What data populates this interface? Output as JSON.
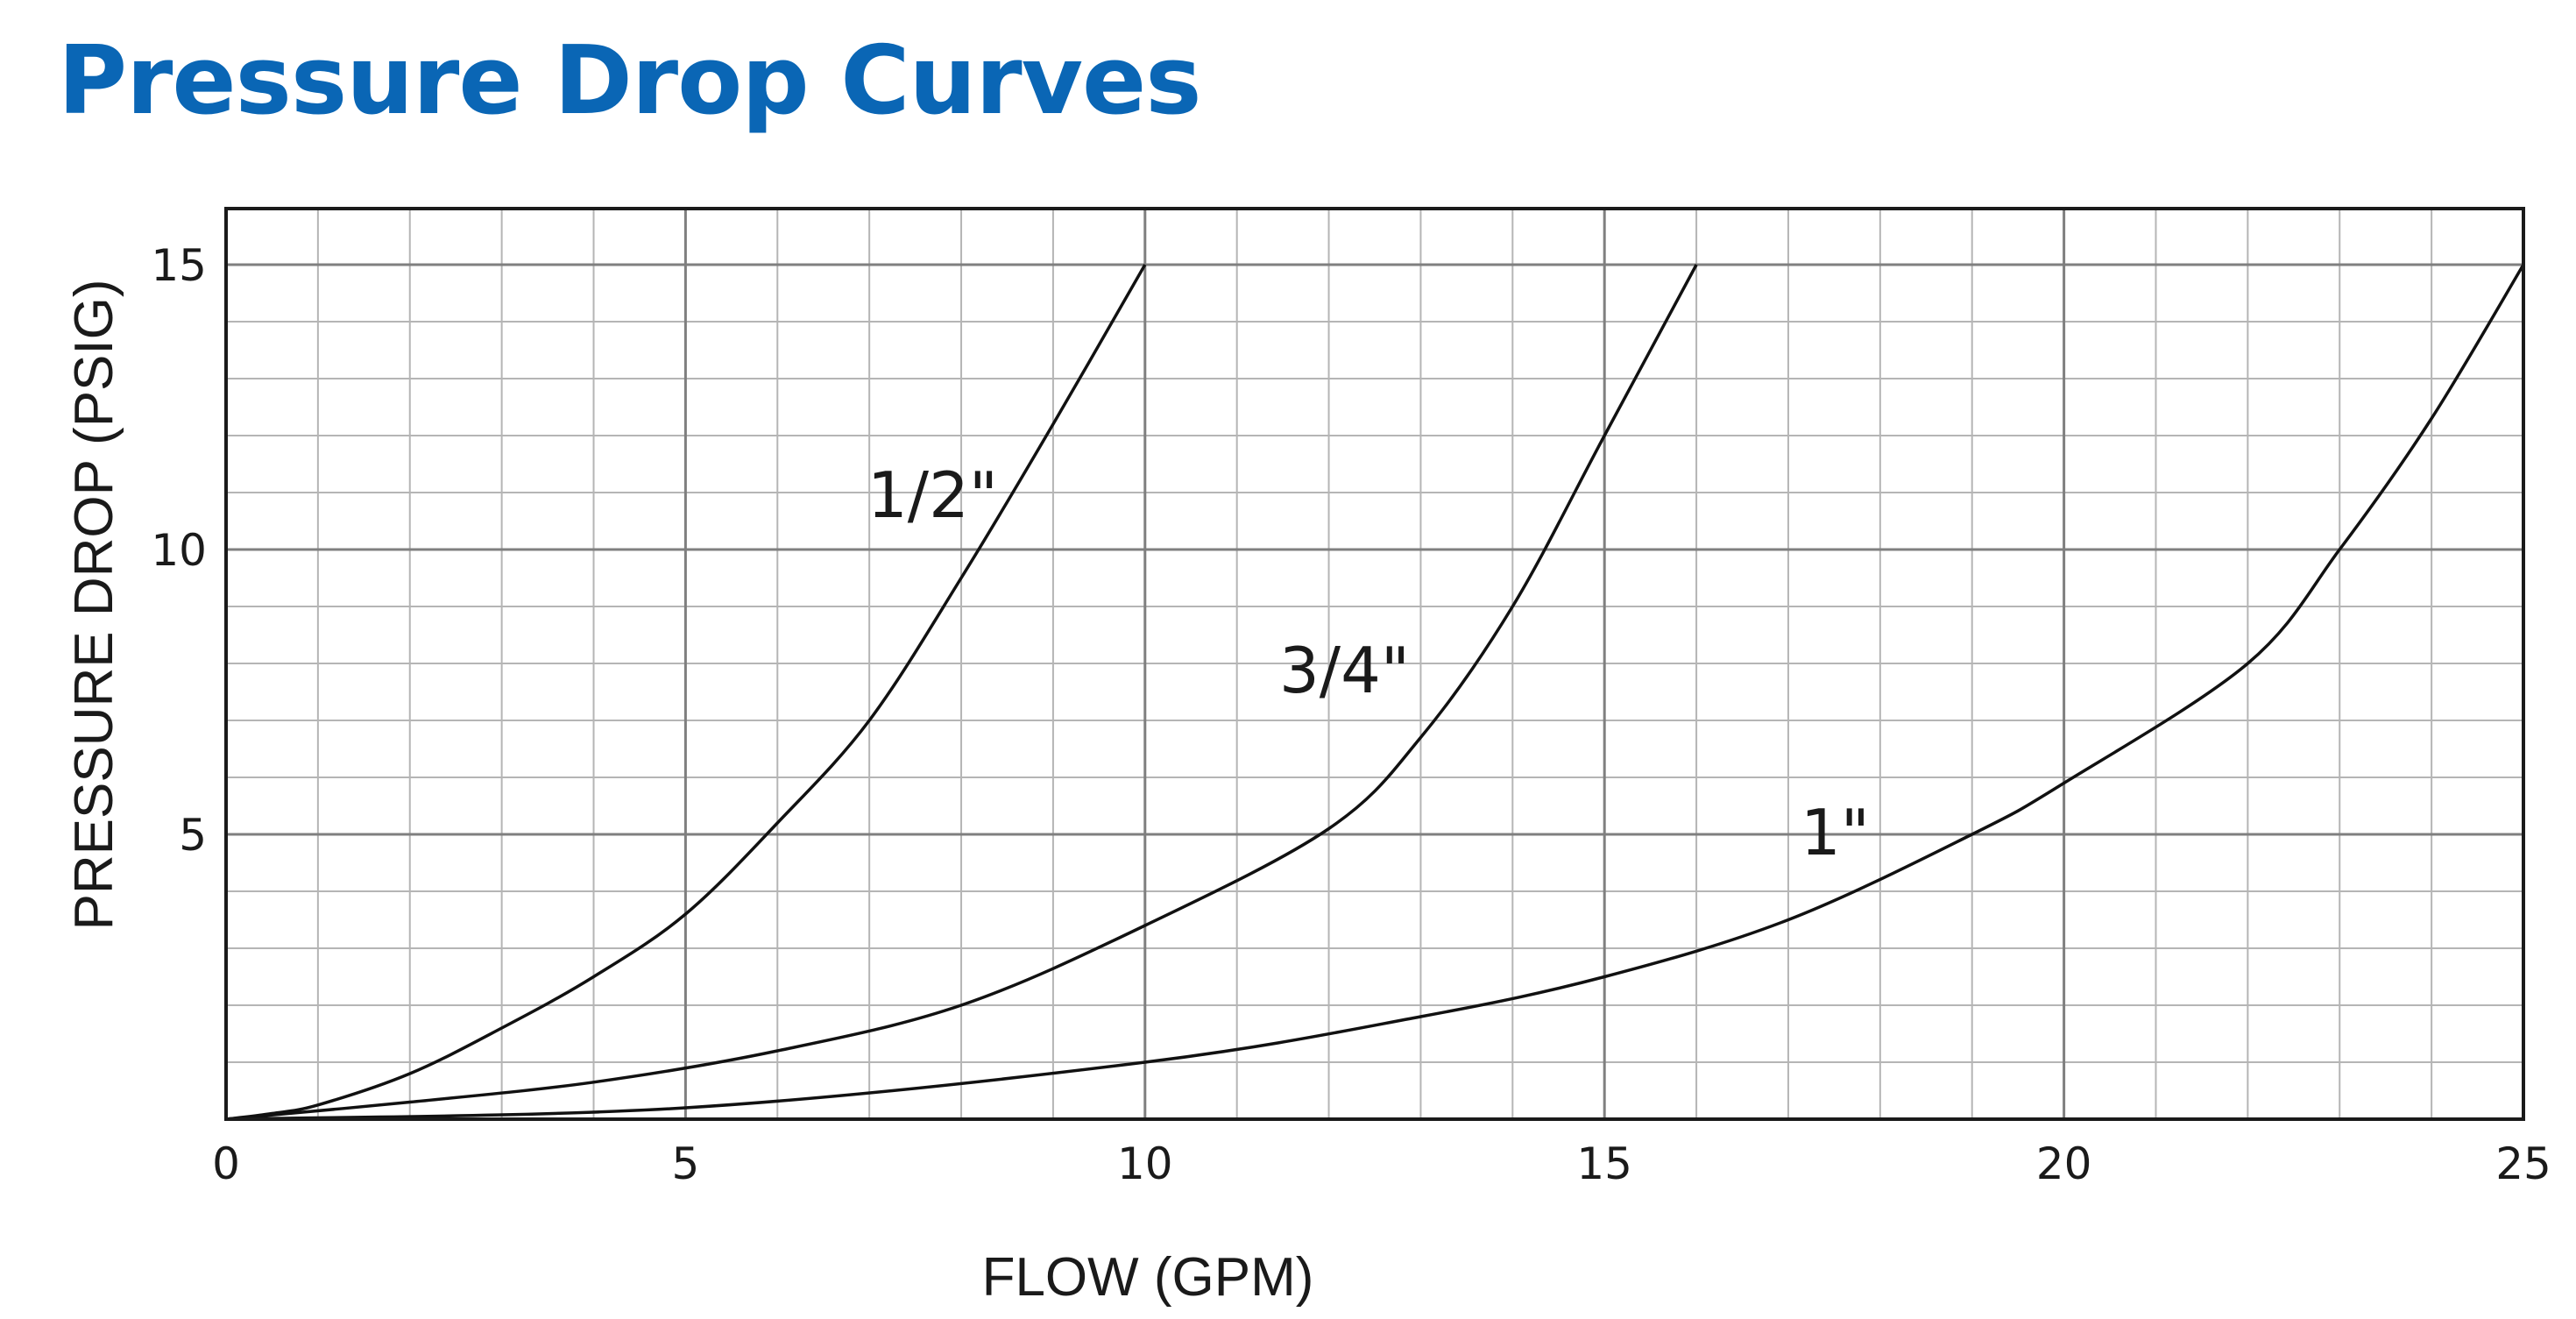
{
  "title": "Pressure Drop Curves",
  "colors": {
    "title": "#0a66b5",
    "grid_minor": "#b5b5b5",
    "grid_major": "#7f7f7f",
    "curve": "#111111",
    "frame": "#1a1a1a"
  },
  "chart_data": {
    "type": "line",
    "title": "Pressure Drop Curves",
    "xlabel": "FLOW (GPM)",
    "ylabel": "PRESSURE DROP (PSIG)",
    "xlim": [
      0,
      25
    ],
    "ylim": [
      0,
      15
    ],
    "x_ticks": [
      0,
      5,
      10,
      15,
      20,
      25
    ],
    "y_ticks": [
      5,
      10,
      15
    ],
    "x_ticks_labels": [
      "0",
      "5",
      "10",
      "15",
      "20",
      "25"
    ],
    "y_ticks_labels": [
      "5",
      "10",
      "15"
    ],
    "grid": true,
    "series": [
      {
        "name": "1/2\"",
        "x": [
          0,
          0.5,
          1,
          2,
          3,
          4,
          5,
          6,
          7,
          8,
          9,
          10
        ],
        "y": [
          0,
          0.1,
          0.25,
          0.8,
          1.6,
          2.5,
          3.6,
          5.2,
          7.0,
          9.5,
          12.2,
          15.0
        ]
      },
      {
        "name": "3/4\"",
        "x": [
          0,
          2,
          4,
          6,
          8,
          10,
          12,
          13,
          14,
          15,
          16
        ],
        "y": [
          0,
          0.3,
          0.65,
          1.2,
          2.0,
          3.4,
          5.1,
          6.7,
          9.0,
          12.0,
          15.0
        ]
      },
      {
        "name": "1\"",
        "x": [
          0,
          5,
          10,
          13,
          15,
          17,
          19,
          20,
          22,
          23,
          24,
          25
        ],
        "y": [
          0,
          0.2,
          1.0,
          1.8,
          2.5,
          3.5,
          5.0,
          5.9,
          8.0,
          10.0,
          12.3,
          15.0
        ]
      }
    ]
  }
}
